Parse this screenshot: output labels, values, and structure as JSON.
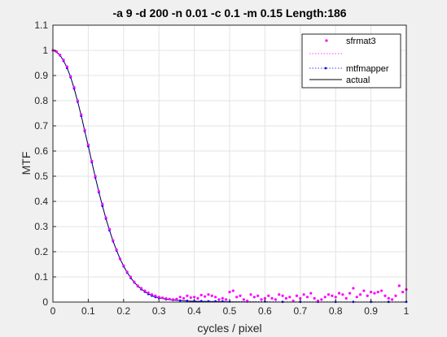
{
  "chart_data": {
    "type": "line",
    "title": "-a 9 -d 200 -n 0.01 -c 0.1 -m 0.15 Length:186",
    "xlabel": "cycles / pixel",
    "ylabel": "MTF",
    "xlim": [
      0,
      1
    ],
    "ylim": [
      0,
      1.1
    ],
    "xticks": [
      "0",
      "0.1",
      "0.2",
      "0.3",
      "0.4",
      "0.5",
      "0.6",
      "0.7",
      "0.8",
      "0.9",
      "1"
    ],
    "yticks": [
      "0",
      "0.1",
      "0.2",
      "0.3",
      "0.4",
      "0.5",
      "0.6",
      "0.7",
      "0.8",
      "0.9",
      "1",
      "1.1"
    ],
    "grid": true,
    "legend_position": "top-right",
    "series": [
      {
        "name": "sfrmat3",
        "style": "magenta-dot-markers",
        "color": "#ff00ff",
        "x": [
          0,
          0.01,
          0.02,
          0.03,
          0.04,
          0.05,
          0.06,
          0.07,
          0.08,
          0.09,
          0.1,
          0.11,
          0.12,
          0.13,
          0.14,
          0.15,
          0.16,
          0.17,
          0.18,
          0.19,
          0.2,
          0.21,
          0.22,
          0.23,
          0.24,
          0.25,
          0.26,
          0.27,
          0.28,
          0.29,
          0.3,
          0.31,
          0.32,
          0.33,
          0.34,
          0.35,
          0.36,
          0.37,
          0.38,
          0.39,
          0.4,
          0.41,
          0.42,
          0.43,
          0.44,
          0.45,
          0.46,
          0.47,
          0.48,
          0.49,
          0.5,
          0.51,
          0.52,
          0.53,
          0.54,
          0.55,
          0.56,
          0.57,
          0.58,
          0.59,
          0.6,
          0.61,
          0.62,
          0.63,
          0.64,
          0.65,
          0.66,
          0.67,
          0.68,
          0.69,
          0.7,
          0.71,
          0.72,
          0.73,
          0.74,
          0.75,
          0.76,
          0.77,
          0.78,
          0.79,
          0.8,
          0.81,
          0.82,
          0.83,
          0.84,
          0.85,
          0.86,
          0.87,
          0.88,
          0.89,
          0.9,
          0.91,
          0.92,
          0.93,
          0.94,
          0.95,
          0.96,
          0.97,
          0.98,
          0.99,
          1.0
        ],
        "y": [
          1.0,
          0.995,
          0.982,
          0.962,
          0.935,
          0.897,
          0.853,
          0.8,
          0.745,
          0.683,
          0.625,
          0.56,
          0.5,
          0.44,
          0.39,
          0.335,
          0.29,
          0.245,
          0.208,
          0.172,
          0.145,
          0.12,
          0.1,
          0.08,
          0.065,
          0.055,
          0.045,
          0.037,
          0.03,
          0.025,
          0.02,
          0.017,
          0.014,
          0.012,
          0.01,
          0.012,
          0.02,
          0.015,
          0.025,
          0.018,
          0.02,
          0.015,
          0.028,
          0.022,
          0.03,
          0.025,
          0.02,
          0.01,
          0.015,
          0.01,
          0.04,
          0.045,
          0.02,
          0.025,
          0.01,
          0.005,
          0.03,
          0.02,
          0.025,
          0.01,
          0.015,
          0.025,
          0.015,
          0.01,
          0.03,
          0.025,
          0.015,
          0.02,
          0.005,
          0.025,
          0.015,
          0.03,
          0.02,
          0.035,
          0.015,
          0.005,
          0.01,
          0.02,
          0.03,
          0.025,
          0.02,
          0.035,
          0.03,
          0.015,
          0.035,
          0.055,
          0.02,
          0.03,
          0.045,
          0.025,
          0.04,
          0.035,
          0.04,
          0.045,
          0.025,
          0.015,
          0.01,
          0.025,
          0.065,
          0.04,
          0.05
        ]
      },
      {
        "name": "mtfmapper",
        "style": "blue-dotted-line-with-dot-markers",
        "color": "#0000ff",
        "x": [
          0,
          0.01,
          0.02,
          0.03,
          0.04,
          0.05,
          0.06,
          0.07,
          0.08,
          0.09,
          0.1,
          0.11,
          0.12,
          0.13,
          0.14,
          0.15,
          0.16,
          0.17,
          0.18,
          0.19,
          0.2,
          0.21,
          0.22,
          0.23,
          0.24,
          0.25,
          0.26,
          0.27,
          0.28,
          0.29,
          0.3,
          0.32,
          0.34,
          0.36,
          0.38,
          0.4,
          0.42,
          0.44,
          0.46,
          0.48,
          0.5,
          0.55,
          0.6,
          0.65,
          0.7,
          0.75,
          0.8,
          0.85,
          0.9,
          0.95,
          1.0
        ],
        "y": [
          1.0,
          0.994,
          0.98,
          0.958,
          0.93,
          0.893,
          0.848,
          0.796,
          0.74,
          0.679,
          0.619,
          0.556,
          0.495,
          0.436,
          0.382,
          0.331,
          0.285,
          0.242,
          0.205,
          0.171,
          0.142,
          0.117,
          0.096,
          0.078,
          0.063,
          0.051,
          0.041,
          0.032,
          0.025,
          0.02,
          0.016,
          0.011,
          0.008,
          0.006,
          0.005,
          0.004,
          0.004,
          0.003,
          0.003,
          0.003,
          0.002,
          0.002,
          0.002,
          0.001,
          0.001,
          0.001,
          0.001,
          0.001,
          0.001,
          0.001,
          0.001
        ]
      },
      {
        "name": "actual",
        "style": "black-solid-line",
        "color": "#000000",
        "x": [
          0,
          0.01,
          0.02,
          0.03,
          0.04,
          0.05,
          0.06,
          0.07,
          0.08,
          0.09,
          0.1,
          0.11,
          0.12,
          0.13,
          0.14,
          0.15,
          0.16,
          0.17,
          0.18,
          0.19,
          0.2,
          0.21,
          0.22,
          0.23,
          0.24,
          0.25,
          0.26,
          0.27,
          0.28,
          0.29,
          0.3,
          0.32,
          0.34,
          0.36,
          0.38,
          0.4,
          0.45,
          0.5,
          0.6,
          0.7,
          0.8,
          0.9,
          1.0
        ],
        "y": [
          1.0,
          0.994,
          0.981,
          0.959,
          0.931,
          0.894,
          0.849,
          0.797,
          0.741,
          0.68,
          0.62,
          0.557,
          0.496,
          0.437,
          0.383,
          0.332,
          0.286,
          0.243,
          0.206,
          0.172,
          0.143,
          0.118,
          0.097,
          0.079,
          0.064,
          0.052,
          0.042,
          0.033,
          0.026,
          0.021,
          0.017,
          0.012,
          0.008,
          0.006,
          0.004,
          0.003,
          0.002,
          0.001,
          0.0,
          0.0,
          0.0,
          0.0,
          0.0
        ]
      }
    ]
  }
}
